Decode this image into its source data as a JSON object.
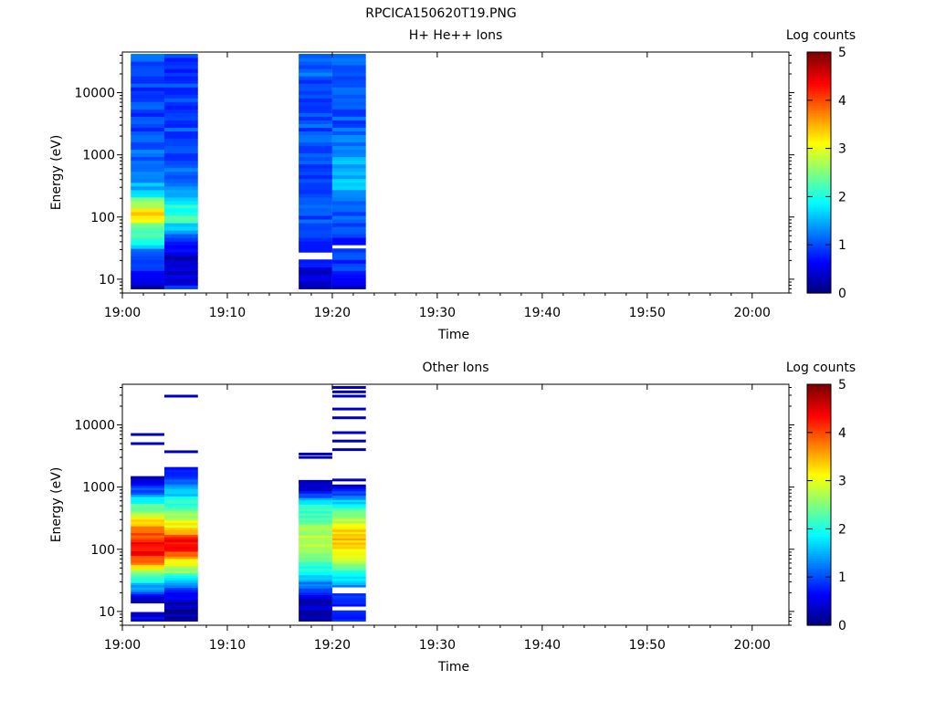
{
  "page_title": "RPCICA150620T19.PNG",
  "chart_data": [
    {
      "type": "heatmap",
      "title": "H+ He++ Ions",
      "xlabel": "Time",
      "ylabel": "Energy (eV)",
      "colorbar_label": "Log counts",
      "colorbar_ticks": [
        "0",
        "1",
        "2",
        "3",
        "4",
        "5"
      ],
      "x_ticks": [
        "19:00",
        "19:10",
        "19:20",
        "19:30",
        "19:40",
        "19:50",
        "20:00"
      ],
      "y_ticks": [
        "10",
        "100",
        "1000",
        "10000"
      ],
      "y_scale": "log",
      "ylim": [
        6,
        45000
      ],
      "xlim_minutes": [
        0,
        63.5
      ],
      "zlim": [
        0,
        5
      ],
      "colormap": "jet",
      "time_bins": [
        {
          "start": 0.8,
          "end": 4.0,
          "e_min": 7,
          "e_max": 42000,
          "profile": [
            [
              7,
              0.2
            ],
            [
              12,
              0.7
            ],
            [
              25,
              1.0
            ],
            [
              40,
              2.0
            ],
            [
              70,
              2.4
            ],
            [
              110,
              3.3
            ],
            [
              160,
              2.8
            ],
            [
              250,
              1.6
            ],
            [
              600,
              1.2
            ],
            [
              2000,
              1.0
            ],
            [
              8000,
              0.9
            ],
            [
              42000,
              1.0
            ]
          ]
        },
        {
          "start": 4.0,
          "end": 7.2,
          "e_min": 7,
          "e_max": 42000,
          "profile": [
            [
              7,
              1.0
            ],
            [
              10,
              0.4
            ],
            [
              20,
              0.3
            ],
            [
              35,
              0.6
            ],
            [
              55,
              1.1
            ],
            [
              90,
              2.2
            ],
            [
              140,
              2.0
            ],
            [
              220,
              1.4
            ],
            [
              600,
              1.1
            ],
            [
              2000,
              1.0
            ],
            [
              8000,
              0.9
            ],
            [
              42000,
              0.9
            ]
          ]
        },
        {
          "start": 16.8,
          "end": 20.0,
          "e_min": 7,
          "e_max": 42000,
          "gaps": [
            [
              20,
              26
            ]
          ],
          "profile": [
            [
              7,
              0.2
            ],
            [
              14,
              0.5
            ],
            [
              30,
              0.9
            ],
            [
              80,
              1.0
            ],
            [
              300,
              0.9
            ],
            [
              1000,
              1.0
            ],
            [
              5000,
              1.0
            ],
            [
              42000,
              1.1
            ]
          ]
        },
        {
          "start": 20.0,
          "end": 23.2,
          "e_min": 7,
          "e_max": 42000,
          "gaps": [
            [
              31,
              36
            ]
          ],
          "profile": [
            [
              7,
              0.2
            ],
            [
              15,
              0.9
            ],
            [
              40,
              0.8
            ],
            [
              100,
              1.0
            ],
            [
              300,
              1.5
            ],
            [
              900,
              1.5
            ],
            [
              3000,
              1.0
            ],
            [
              42000,
              1.1
            ]
          ]
        }
      ]
    },
    {
      "type": "heatmap",
      "title": "Other Ions",
      "xlabel": "Time",
      "ylabel": "Energy (eV)",
      "colorbar_label": "Log counts",
      "colorbar_ticks": [
        "0",
        "1",
        "2",
        "3",
        "4",
        "5"
      ],
      "x_ticks": [
        "19:00",
        "19:10",
        "19:20",
        "19:30",
        "19:40",
        "19:50",
        "20:00"
      ],
      "y_ticks": [
        "10",
        "100",
        "1000",
        "10000"
      ],
      "y_scale": "log",
      "ylim": [
        6,
        45000
      ],
      "xlim_minutes": [
        0,
        63.5
      ],
      "zlim": [
        0,
        5
      ],
      "colormap": "jet",
      "time_bins": [
        {
          "start": 0.8,
          "end": 4.0,
          "e_min": 7,
          "e_max": 1500,
          "gaps": [
            [
              10,
              14
            ]
          ],
          "profile": [
            [
              7,
              0.5
            ],
            [
              15,
              0.3
            ],
            [
              22,
              1.2
            ],
            [
              35,
              2.2
            ],
            [
              60,
              3.7
            ],
            [
              90,
              4.5
            ],
            [
              130,
              4.3
            ],
            [
              250,
              3.5
            ],
            [
              500,
              2.3
            ],
            [
              900,
              1.0
            ],
            [
              1500,
              0.2
            ]
          ],
          "lines": [
            7000,
            5000,
            1400
          ]
        },
        {
          "start": 4.0,
          "end": 7.2,
          "e_min": 7,
          "e_max": 2100,
          "profile": [
            [
              7,
              0.1
            ],
            [
              14,
              0.3
            ],
            [
              25,
              1.0
            ],
            [
              40,
              2.4
            ],
            [
              70,
              3.4
            ],
            [
              100,
              4.3
            ],
            [
              140,
              4.4
            ],
            [
              200,
              3.4
            ],
            [
              500,
              2.2
            ],
            [
              1000,
              1.3
            ],
            [
              2100,
              0.8
            ]
          ],
          "lines": [
            29000,
            3700
          ]
        },
        {
          "start": 16.8,
          "end": 20.0,
          "e_min": 7,
          "e_max": 1300,
          "profile": [
            [
              7,
              0.1
            ],
            [
              15,
              0.4
            ],
            [
              25,
              1.0
            ],
            [
              40,
              1.8
            ],
            [
              70,
              2.4
            ],
            [
              120,
              2.8
            ],
            [
              200,
              2.7
            ],
            [
              500,
              2.0
            ],
            [
              900,
              0.6
            ],
            [
              1300,
              0.2
            ]
          ],
          "lines": [
            3400,
            3000,
            1200
          ]
        },
        {
          "start": 20.0,
          "end": 23.2,
          "e_min": 7,
          "e_max": 1100,
          "gaps": [
            [
              10,
              12
            ],
            [
              20,
              25
            ]
          ],
          "profile": [
            [
              7,
              0.8
            ],
            [
              12,
              0.6
            ],
            [
              30,
              1.5
            ],
            [
              60,
              2.6
            ],
            [
              100,
              3.2
            ],
            [
              180,
              3.4
            ],
            [
              400,
              2.4
            ],
            [
              800,
              1.0
            ],
            [
              1100,
              0.3
            ]
          ],
          "lines": [
            40000,
            34000,
            29000,
            18000,
            13000,
            7500,
            5500,
            4000,
            1300
          ]
        }
      ]
    }
  ]
}
